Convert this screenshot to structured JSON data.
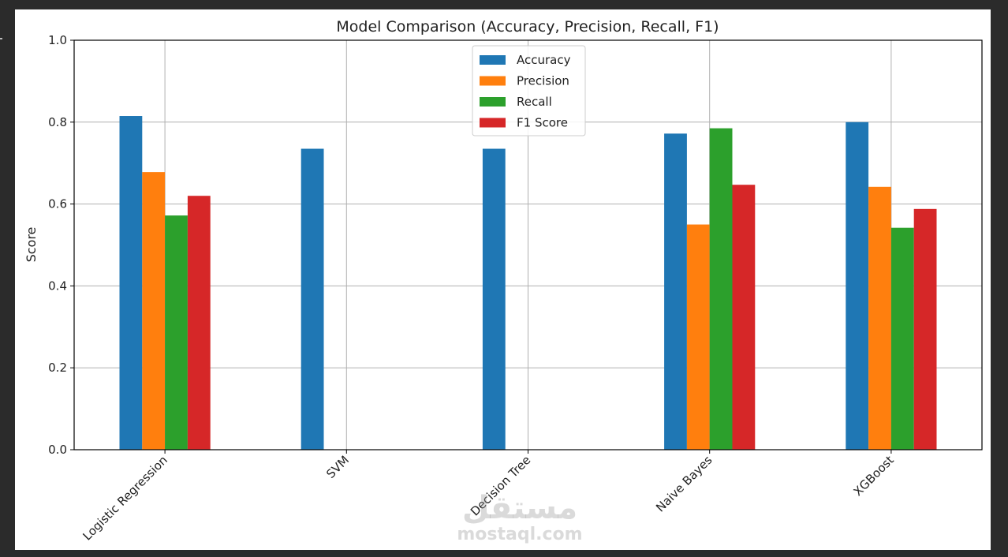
{
  "chart_data": {
    "type": "bar",
    "title": "Model Comparison (Accuracy, Precision, Recall, F1)",
    "xlabel": "",
    "ylabel": "Score",
    "ylim": [
      0,
      1.0
    ],
    "yticks": [
      "0.0",
      "0.2",
      "0.4",
      "0.6",
      "0.8",
      "1.0"
    ],
    "grid": true,
    "legend_position": "top-center",
    "categories": [
      "Logistic Regression",
      "SVM",
      "Decision Tree",
      "Naive Bayes",
      "XGBoost"
    ],
    "series": [
      {
        "name": "Accuracy",
        "color": "#1f77b4",
        "values": [
          0.815,
          0.735,
          0.735,
          0.772,
          0.8
        ]
      },
      {
        "name": "Precision",
        "color": "#ff7f0e",
        "values": [
          0.678,
          0.0,
          0.0,
          0.55,
          0.642
        ]
      },
      {
        "name": "Recall",
        "color": "#2ca02c",
        "values": [
          0.572,
          0.0,
          0.0,
          0.785,
          0.542
        ]
      },
      {
        "name": "F1 Score",
        "color": "#d62728",
        "values": [
          0.62,
          0.0,
          0.0,
          0.647,
          0.588
        ]
      }
    ]
  },
  "watermark": {
    "logo_text": "مستقل",
    "url_text": "mostaql.com"
  }
}
